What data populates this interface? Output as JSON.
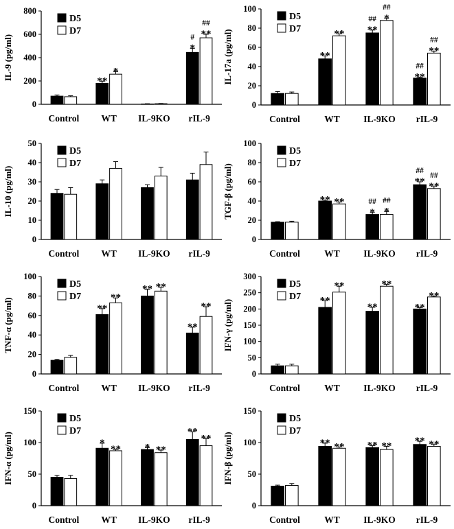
{
  "legend": {
    "d5": "D5",
    "d7": "D7"
  },
  "chart_data": [
    {
      "type": "bar",
      "ylabel": "IL-9 (pg/ml)",
      "ylim": [
        0,
        800
      ],
      "yticks": [
        "0",
        "200",
        "400",
        "600",
        "800"
      ],
      "categories": [
        "Control",
        "WT",
        "IL-9KO",
        "rIL-9"
      ],
      "series": [
        {
          "name": "D5",
          "values": [
            70,
            180,
            3,
            445
          ],
          "errors": [
            10,
            18,
            2,
            35
          ]
        },
        {
          "name": "D7",
          "values": [
            65,
            258,
            5,
            570
          ],
          "errors": [
            8,
            22,
            2,
            30
          ]
        }
      ],
      "annotations": [
        {
          "category": 1,
          "series": 0,
          "lines": [
            "**"
          ]
        },
        {
          "category": 1,
          "series": 1,
          "lines": [
            "*"
          ]
        },
        {
          "category": 3,
          "series": 0,
          "lines": [
            "#",
            "*"
          ]
        },
        {
          "category": 3,
          "series": 1,
          "lines": [
            "##",
            "**"
          ]
        }
      ]
    },
    {
      "type": "bar",
      "ylabel": "IL-17a (pg/ml)",
      "ylim": [
        0,
        100
      ],
      "yticks": [
        "0",
        "20",
        "40",
        "60",
        "80",
        "100"
      ],
      "categories": [
        "Control",
        "WT",
        "IL-9KO",
        "rIL-9"
      ],
      "series": [
        {
          "name": "D5",
          "values": [
            12,
            48,
            75,
            28
          ],
          "errors": [
            2,
            3,
            3,
            1
          ]
        },
        {
          "name": "D7",
          "values": [
            12,
            72,
            88,
            54
          ],
          "errors": [
            1.5,
            2,
            2,
            2
          ]
        }
      ],
      "annotations": [
        {
          "category": 1,
          "series": 0,
          "lines": [
            "**"
          ]
        },
        {
          "category": 1,
          "series": 1,
          "lines": [
            "**"
          ]
        },
        {
          "category": 2,
          "series": 0,
          "lines": [
            "##",
            "**"
          ]
        },
        {
          "category": 2,
          "series": 1,
          "lines": [
            "##",
            "*"
          ]
        },
        {
          "category": 3,
          "series": 0,
          "lines": [
            "##",
            "**"
          ]
        },
        {
          "category": 3,
          "series": 1,
          "lines": [
            "##",
            "**"
          ]
        }
      ]
    },
    {
      "type": "bar",
      "ylabel": "IL-10 (pg/ml)",
      "ylim": [
        0,
        50
      ],
      "yticks": [
        "0",
        "10",
        "20",
        "30",
        "40",
        "50"
      ],
      "categories": [
        "Control",
        "WT",
        "IL-9KO",
        "rIL-9"
      ],
      "series": [
        {
          "name": "D5",
          "values": [
            24,
            29,
            27,
            31
          ],
          "errors": [
            2,
            2,
            1.5,
            3.5
          ]
        },
        {
          "name": "D7",
          "values": [
            23.5,
            37,
            33,
            39
          ],
          "errors": [
            3.5,
            3.5,
            4.5,
            6.5
          ]
        }
      ],
      "annotations": []
    },
    {
      "type": "bar",
      "ylabel": "TGF-β (pg/ml)",
      "ylim": [
        0,
        100
      ],
      "yticks": [
        "0",
        "20",
        "40",
        "60",
        "80",
        "100"
      ],
      "categories": [
        "Control",
        "WT",
        "IL-9KO",
        "rIL-9"
      ],
      "series": [
        {
          "name": "D5",
          "values": [
            18,
            40,
            26,
            57
          ],
          "errors": [
            0.5,
            1,
            2,
            3
          ]
        },
        {
          "name": "D7",
          "values": [
            18,
            37,
            26,
            53
          ],
          "errors": [
            1,
            2,
            3,
            2
          ]
        }
      ],
      "annotations": [
        {
          "category": 1,
          "series": 0,
          "lines": [
            "**"
          ]
        },
        {
          "category": 1,
          "series": 1,
          "lines": [
            "**"
          ]
        },
        {
          "category": 2,
          "series": 0,
          "lines": [
            "##",
            "*"
          ]
        },
        {
          "category": 2,
          "series": 1,
          "lines": [
            "##",
            "*"
          ]
        },
        {
          "category": 3,
          "series": 0,
          "lines": [
            "##",
            "**"
          ]
        },
        {
          "category": 3,
          "series": 1,
          "lines": [
            "##",
            "**"
          ]
        }
      ]
    },
    {
      "type": "bar",
      "ylabel": "TNF-α (pg/ml)",
      "ylim": [
        0,
        100
      ],
      "yticks": [
        "0",
        "20",
        "40",
        "60",
        "80",
        "100"
      ],
      "categories": [
        "Control",
        "WT",
        "IL-9KO",
        "rIL-9"
      ],
      "series": [
        {
          "name": "D5",
          "values": [
            14,
            61,
            80,
            42
          ],
          "errors": [
            1,
            6,
            7,
            6
          ]
        },
        {
          "name": "D7",
          "values": [
            17,
            73,
            85,
            59
          ],
          "errors": [
            2,
            5,
            4,
            10
          ]
        }
      ],
      "annotations": [
        {
          "category": 1,
          "series": 0,
          "lines": [
            "**"
          ]
        },
        {
          "category": 1,
          "series": 1,
          "lines": [
            "**"
          ]
        },
        {
          "category": 2,
          "series": 0,
          "lines": [
            "**"
          ]
        },
        {
          "category": 2,
          "series": 1,
          "lines": [
            "**"
          ]
        },
        {
          "category": 3,
          "series": 0,
          "lines": [
            "**"
          ]
        },
        {
          "category": 3,
          "series": 1,
          "lines": [
            "**"
          ]
        }
      ]
    },
    {
      "type": "bar",
      "ylabel": "IFN-γ (pg/ml)",
      "ylim": [
        0,
        300
      ],
      "yticks": [
        "0",
        "50",
        "100",
        "150",
        "200",
        "250",
        "300"
      ],
      "categories": [
        "Control",
        "WT",
        "IL-9KO",
        "rIL-9"
      ],
      "series": [
        {
          "name": "D5",
          "values": [
            25,
            205,
            193,
            200
          ],
          "errors": [
            5,
            20,
            12,
            4
          ]
        },
        {
          "name": "D7",
          "values": [
            25,
            252,
            270,
            237
          ],
          "errors": [
            5,
            18,
            6,
            3
          ]
        }
      ],
      "annotations": [
        {
          "category": 1,
          "series": 0,
          "lines": [
            "**"
          ]
        },
        {
          "category": 1,
          "series": 1,
          "lines": [
            "**"
          ]
        },
        {
          "category": 2,
          "series": 0,
          "lines": [
            "**"
          ]
        },
        {
          "category": 2,
          "series": 1,
          "lines": [
            "**"
          ]
        },
        {
          "category": 3,
          "series": 0,
          "lines": [
            "**"
          ]
        },
        {
          "category": 3,
          "series": 1,
          "lines": [
            "**"
          ]
        }
      ]
    },
    {
      "type": "bar",
      "ylabel": "IFN-α (pg/ml)",
      "ylim": [
        0,
        150
      ],
      "yticks": [
        "0",
        "50",
        "100",
        "150"
      ],
      "categories": [
        "Control",
        "WT",
        "IL-9KO",
        "rIL-9"
      ],
      "series": [
        {
          "name": "D5",
          "values": [
            45,
            91,
            89,
            105
          ],
          "errors": [
            3,
            8,
            3,
            12
          ]
        },
        {
          "name": "D7",
          "values": [
            43,
            87,
            84,
            95
          ],
          "errors": [
            5,
            2,
            4,
            11
          ]
        }
      ],
      "annotations": [
        {
          "category": 1,
          "series": 0,
          "lines": [
            "*"
          ]
        },
        {
          "category": 1,
          "series": 1,
          "lines": [
            "**"
          ]
        },
        {
          "category": 2,
          "series": 0,
          "lines": [
            "*"
          ]
        },
        {
          "category": 2,
          "series": 1,
          "lines": [
            "**"
          ]
        },
        {
          "category": 3,
          "series": 0,
          "lines": [
            "**"
          ]
        },
        {
          "category": 3,
          "series": 1,
          "lines": [
            "**"
          ]
        }
      ]
    },
    {
      "type": "bar",
      "ylabel": "IFN-β (pg/ml)",
      "ylim": [
        0,
        150
      ],
      "yticks": [
        "0",
        "50",
        "100",
        "150"
      ],
      "categories": [
        "Control",
        "WT",
        "IL-9KO",
        "rIL-9"
      ],
      "series": [
        {
          "name": "D5",
          "values": [
            31,
            94,
            92,
            97
          ],
          "errors": [
            1.5,
            5,
            3,
            5
          ]
        },
        {
          "name": "D7",
          "values": [
            32,
            91,
            89,
            94
          ],
          "errors": [
            3,
            2,
            5,
            3
          ]
        }
      ],
      "annotations": [
        {
          "category": 1,
          "series": 0,
          "lines": [
            "**"
          ]
        },
        {
          "category": 1,
          "series": 1,
          "lines": [
            "**"
          ]
        },
        {
          "category": 2,
          "series": 0,
          "lines": [
            "**"
          ]
        },
        {
          "category": 2,
          "series": 1,
          "lines": [
            "**"
          ]
        },
        {
          "category": 3,
          "series": 0,
          "lines": [
            "**"
          ]
        },
        {
          "category": 3,
          "series": 1,
          "lines": [
            "**"
          ]
        }
      ]
    }
  ]
}
